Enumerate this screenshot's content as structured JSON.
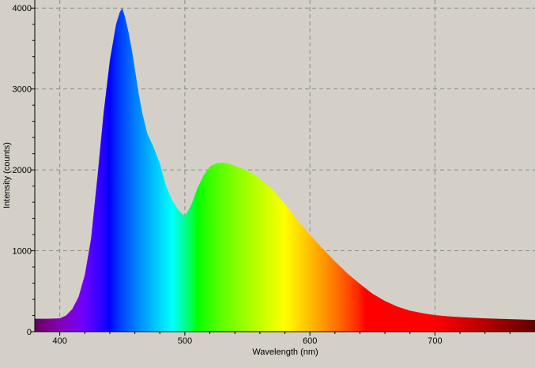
{
  "chart_data": {
    "type": "area",
    "title": "",
    "xlabel": "Wavelength (nm)",
    "ylabel": "Intensity (counts)",
    "xlim": [
      380,
      780
    ],
    "ylim": [
      0,
      4100
    ],
    "x_ticks": [
      400,
      500,
      600,
      700
    ],
    "y_ticks": [
      0,
      1000,
      2000,
      3000,
      4000
    ],
    "x_tick_labels": [
      "400",
      "500",
      "600",
      "700"
    ],
    "y_tick_labels": [
      "0",
      "1000",
      "2000",
      "3000",
      "4000"
    ],
    "grid": true,
    "fill": "spectral colors by wavelength",
    "series": [
      {
        "x": [
          380,
          390,
          400,
          405,
          410,
          415,
          420,
          425,
          430,
          435,
          440,
          445,
          448,
          450,
          452,
          455,
          458,
          460,
          463,
          466,
          470,
          475,
          480,
          485,
          490,
          495,
          500,
          505,
          510,
          515,
          520,
          525,
          530,
          535,
          540,
          545,
          550,
          555,
          560,
          570,
          580,
          590,
          600,
          610,
          620,
          630,
          640,
          650,
          660,
          670,
          680,
          690,
          700,
          710,
          720,
          730,
          740,
          750,
          760,
          770,
          780
        ],
        "values": [
          160,
          160,
          165,
          200,
          280,
          430,
          700,
          1150,
          1900,
          2700,
          3350,
          3800,
          3950,
          4000,
          3900,
          3700,
          3450,
          3250,
          2950,
          2700,
          2450,
          2280,
          2080,
          1800,
          1620,
          1500,
          1430,
          1560,
          1770,
          1930,
          2040,
          2080,
          2090,
          2080,
          2050,
          2020,
          1990,
          1950,
          1890,
          1760,
          1580,
          1380,
          1200,
          1030,
          870,
          720,
          590,
          470,
          380,
          310,
          260,
          230,
          205,
          190,
          180,
          172,
          165,
          160,
          155,
          150,
          145
        ]
      }
    ]
  }
}
